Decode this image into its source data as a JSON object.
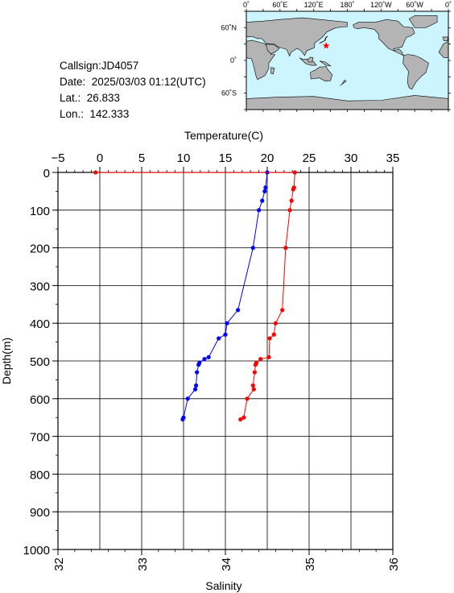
{
  "info": {
    "callsign": "Callsign:JD4057",
    "date": "Date:  2025/03/03 01:12(UTC)",
    "lat": "Lat.:  26.833",
    "lon": "Lon.:  142.333"
  },
  "map": {
    "lon_labels": [
      "0˚",
      "60˚E",
      "120˚E",
      "180˚",
      "120˚W",
      "60˚W",
      "0˚"
    ],
    "lat_labels": [
      "60˚N",
      "0˚",
      "60˚S"
    ],
    "ocean_color": "#ccf5ff",
    "land_color": "#b4b4b4",
    "marker_color": "#ff0000",
    "station": {
      "lon": 142.333,
      "lat": 26.833
    }
  },
  "chart_data": {
    "type": "line",
    "top_axis_label": "Temperature(C)",
    "xlabel": "Salinity",
    "ylabel": "Depth(m)",
    "temperature_range": [
      -5,
      35
    ],
    "temperature_ticks": [
      "−5",
      "0",
      "5",
      "10",
      "15",
      "20",
      "25",
      "30",
      "35"
    ],
    "salinity_range": [
      32,
      36
    ],
    "salinity_ticks": [
      "32",
      "33",
      "34",
      "35",
      "36"
    ],
    "depth_range": [
      0,
      1000
    ],
    "depth_ticks": [
      "0",
      "100",
      "200",
      "300",
      "400",
      "500",
      "600",
      "700",
      "800",
      "900",
      "1000"
    ],
    "grid": true,
    "series": [
      {
        "quantity": "temperature",
        "color": "#0000ff",
        "points": [
          {
            "value": 20.0,
            "depth": 0
          },
          {
            "value": 19.8,
            "depth": 40
          },
          {
            "value": 19.7,
            "depth": 50
          },
          {
            "value": 19.4,
            "depth": 75
          },
          {
            "value": 19.0,
            "depth": 100
          },
          {
            "value": 18.3,
            "depth": 200
          },
          {
            "value": 16.5,
            "depth": 365
          },
          {
            "value": 15.2,
            "depth": 400
          },
          {
            "value": 15.0,
            "depth": 430
          },
          {
            "value": 14.2,
            "depth": 440
          },
          {
            "value": 13.0,
            "depth": 490
          },
          {
            "value": 12.5,
            "depth": 495
          },
          {
            "value": 11.9,
            "depth": 505
          },
          {
            "value": 11.8,
            "depth": 510
          },
          {
            "value": 11.6,
            "depth": 530
          },
          {
            "value": 11.5,
            "depth": 565
          },
          {
            "value": 11.4,
            "depth": 575
          },
          {
            "value": 10.5,
            "depth": 600
          },
          {
            "value": 10.0,
            "depth": 650
          },
          {
            "value": 9.9,
            "depth": 655
          }
        ]
      },
      {
        "quantity": "salinity",
        "color": "#ff0000",
        "points": [
          {
            "value": 32.45,
            "depth": 0
          },
          {
            "value": 34.83,
            "depth": 0
          },
          {
            "value": 34.82,
            "depth": 40
          },
          {
            "value": 34.81,
            "depth": 45
          },
          {
            "value": 34.79,
            "depth": 75
          },
          {
            "value": 34.77,
            "depth": 100
          },
          {
            "value": 34.72,
            "depth": 200
          },
          {
            "value": 34.68,
            "depth": 365
          },
          {
            "value": 34.6,
            "depth": 400
          },
          {
            "value": 34.58,
            "depth": 430
          },
          {
            "value": 34.53,
            "depth": 440
          },
          {
            "value": 34.52,
            "depth": 490
          },
          {
            "value": 34.42,
            "depth": 495
          },
          {
            "value": 34.37,
            "depth": 505
          },
          {
            "value": 34.36,
            "depth": 510
          },
          {
            "value": 34.35,
            "depth": 530
          },
          {
            "value": 34.33,
            "depth": 565
          },
          {
            "value": 34.34,
            "depth": 575
          },
          {
            "value": 34.26,
            "depth": 600
          },
          {
            "value": 34.22,
            "depth": 650
          },
          {
            "value": 34.18,
            "depth": 655
          }
        ]
      }
    ]
  }
}
